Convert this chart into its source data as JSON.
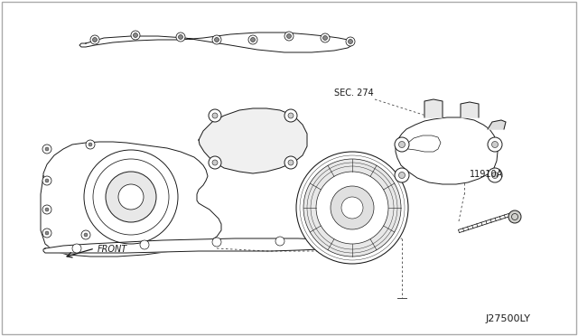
{
  "background_color": "#ffffff",
  "border_color": "#cccccc",
  "fig_width": 6.4,
  "fig_height": 3.72,
  "dpi": 100,
  "label_sec274": "SEC. 274",
  "label_11910a": "11910A",
  "label_front": "FRONT",
  "label_j27500ly": "J27500LY",
  "text_color": "#1a1a1a",
  "line_color": "#1a1a1a",
  "dashed_line_color": "#444444",
  "font_size_labels": 7,
  "font_size_small": 7,
  "lw": 0.7
}
